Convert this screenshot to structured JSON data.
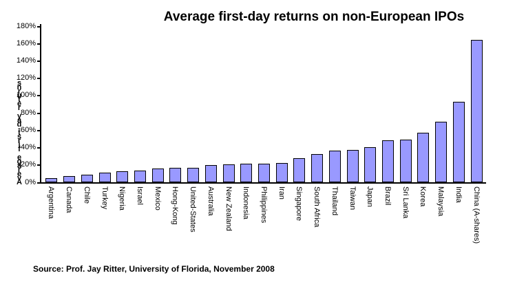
{
  "chart_data": {
    "type": "bar",
    "title": "Average first-day returns on non-European IPOs",
    "xlabel": "",
    "ylabel": "Average first-day returns",
    "categories": [
      "Argentina",
      "Canada",
      "Chile",
      "Turkey",
      "Nigeria",
      "Israel",
      "Mexico",
      "Hong-Kong",
      "United-States",
      "Australia",
      "New Zealand",
      "Indonesia",
      "Philippines",
      "Iran",
      "Singapore",
      "South Africa",
      "Thailand",
      "Taiwan",
      "Japan",
      "Brazil",
      "Sri Lanka",
      "Korea",
      "Malaysia",
      "India",
      "China (A-shares)"
    ],
    "values": [
      4.4,
      7.1,
      8.4,
      10.8,
      12.7,
      13.8,
      15.9,
      16.3,
      16.9,
      19.8,
      20.3,
      21.1,
      21.2,
      22.4,
      27.4,
      32.7,
      36.6,
      37.2,
      40.1,
      48.7,
      48.9,
      57.0,
      69.6,
      92.7,
      164.5
    ],
    "value_unit": "%",
    "ylim": [
      0,
      180
    ],
    "y_tick_step": 20,
    "y_tick_labels": [
      "0%",
      "20%",
      "40%",
      "60%",
      "80%",
      "100%",
      "120%",
      "140%",
      "160%",
      "180%"
    ],
    "grid": false,
    "legend": "none",
    "bar_color": "#9999FF",
    "bar_border_color": "#000000"
  },
  "source_note": "Source: Prof. Jay Ritter, University of Florida, November 2008"
}
